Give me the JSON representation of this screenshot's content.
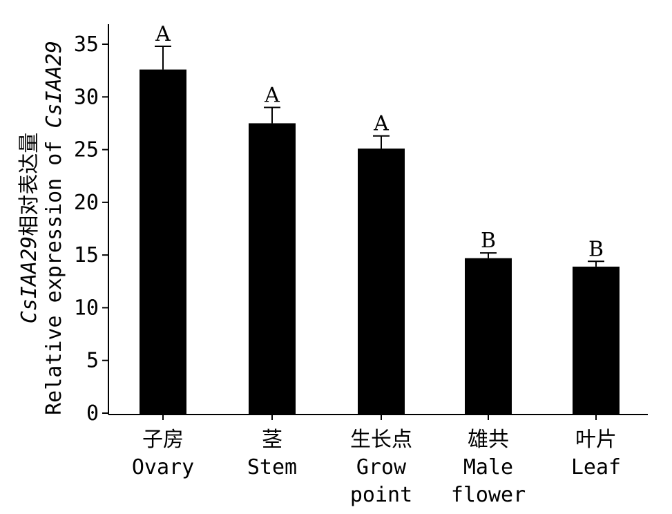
{
  "chart_data": {
    "type": "bar",
    "ylabel_line1_italic": "CsIAA29",
    "ylabel_line1_cn": "相对表达量",
    "ylabel_line2": "Relative expression of ",
    "ylabel_line2_italic": "CsIAA29",
    "ylim": [
      0,
      35
    ],
    "yticks": [
      "0",
      "5",
      "10",
      "15",
      "20",
      "25",
      "30",
      "35"
    ],
    "ytick_values": [
      0,
      5,
      10,
      15,
      20,
      25,
      30,
      35
    ],
    "categories": [
      {
        "cn": "子房",
        "en": [
          "Ovary"
        ]
      },
      {
        "cn": "茎",
        "en": [
          "Stem"
        ]
      },
      {
        "cn": "生长点",
        "en": [
          "Grow",
          "point"
        ]
      },
      {
        "cn": "雄共",
        "en": [
          "Male",
          "flower"
        ]
      },
      {
        "cn": "叶片",
        "en": [
          "Leaf"
        ]
      }
    ],
    "values": [
      32.6,
      27.5,
      25.1,
      14.7,
      13.9
    ],
    "errors": [
      2.2,
      1.5,
      1.2,
      0.5,
      0.5
    ],
    "significance": [
      "A",
      "A",
      "A",
      "B",
      "B"
    ],
    "bar_color": "#000000",
    "grid": false,
    "legend": "none"
  }
}
